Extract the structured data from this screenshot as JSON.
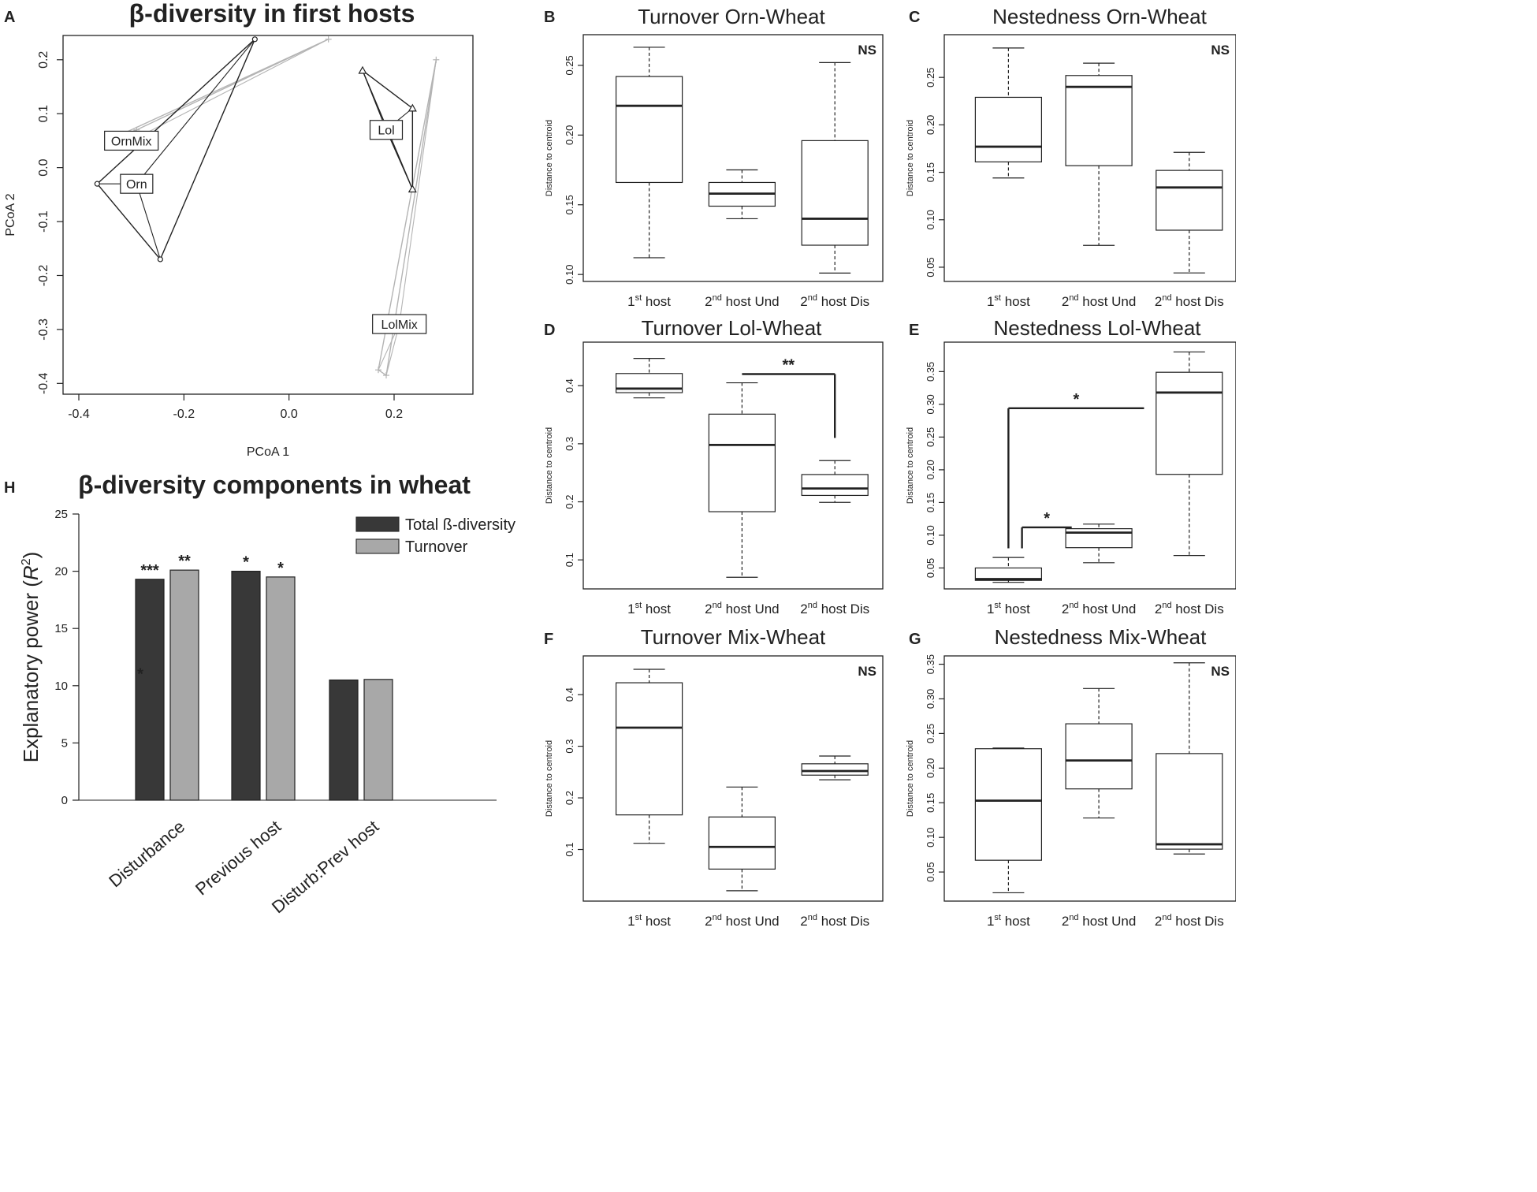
{
  "colors": {
    "ink": "#222222",
    "grid_grey": "#b4b4b4",
    "dark_bar": "#383838",
    "light_bar": "#a8a8a8"
  },
  "chart_data": [
    {
      "id": "A",
      "type": "scatter",
      "panel_letter": "A",
      "title": "β-diversity  in first hosts",
      "xlabel": "PCoA 1",
      "ylabel": "PCoA 2",
      "xlim": [
        -0.43,
        0.35
      ],
      "ylim": [
        -0.42,
        0.245
      ],
      "xticks": [
        -0.4,
        -0.2,
        0.0,
        0.2
      ],
      "xtick_labels": [
        "-0.4",
        "-0.2",
        "0.0",
        "0.2"
      ],
      "yticks": [
        0.2,
        0.1,
        0.0,
        -0.1,
        -0.2,
        -0.3,
        -0.4
      ],
      "ytick_labels": [
        "0.2",
        "0.1",
        "0.0",
        "-0.1",
        "-0.2",
        "-0.3",
        "-0.4"
      ],
      "groups": [
        {
          "name": "Orn",
          "marker": "circle",
          "color": "#222222",
          "centroid": [
            -0.29,
            -0.03
          ],
          "points": [
            [
              -0.065,
              0.238
            ],
            [
              -0.365,
              -0.03
            ],
            [
              -0.245,
              -0.17
            ]
          ],
          "hull": [
            [
              -0.065,
              0.238
            ],
            [
              -0.365,
              -0.03
            ],
            [
              -0.245,
              -0.17
            ]
          ]
        },
        {
          "name": "OrnMix",
          "marker": "cross",
          "color": "#b4b4b4",
          "centroid": [
            -0.3,
            0.05
          ],
          "points": [
            [
              0.075,
              0.238
            ],
            [
              -0.345,
              0.05
            ],
            [
              -0.29,
              0.07
            ]
          ],
          "hull": [
            [
              0.075,
              0.238
            ],
            [
              -0.345,
              0.05
            ],
            [
              -0.29,
              0.07
            ]
          ]
        },
        {
          "name": "Lol",
          "marker": "triangle",
          "color": "#222222",
          "centroid": [
            0.185,
            0.07
          ],
          "points": [
            [
              0.14,
              0.18
            ],
            [
              0.235,
              0.11
            ],
            [
              0.235,
              -0.04
            ]
          ],
          "hull": [
            [
              0.14,
              0.18
            ],
            [
              0.235,
              0.11
            ],
            [
              0.235,
              -0.04
            ]
          ]
        },
        {
          "name": "LolMix",
          "marker": "cross",
          "color": "#b4b4b4",
          "centroid": [
            0.21,
            -0.29
          ],
          "points": [
            [
              0.28,
              0.2
            ],
            [
              0.17,
              -0.375
            ],
            [
              0.185,
              -0.385
            ]
          ],
          "hull": [
            [
              0.28,
              0.2
            ],
            [
              0.17,
              -0.375
            ],
            [
              0.185,
              -0.385
            ]
          ]
        }
      ]
    },
    {
      "id": "B",
      "type": "box",
      "panel_letter": "B",
      "title": "Turnover Orn-Wheat",
      "ylabel": "Distance to centroid",
      "ylim": [
        0.095,
        0.272
      ],
      "yticks": [
        0.1,
        0.15,
        0.2,
        0.25
      ],
      "ytick_labels": [
        "0.10",
        "0.15",
        "0.20",
        "0.25"
      ],
      "note": "NS",
      "groups": [
        {
          "base": "1",
          "sup": "st",
          "rest": " host",
          "min": 0.112,
          "q1": 0.166,
          "median": 0.221,
          "q3": 0.242,
          "max": 0.263
        },
        {
          "base": "2",
          "sup": "nd",
          "rest": " host Und",
          "min": 0.14,
          "q1": 0.149,
          "median": 0.158,
          "q3": 0.166,
          "max": 0.175
        },
        {
          "base": "2",
          "sup": "nd",
          "rest": " host Dis",
          "min": 0.101,
          "q1": 0.121,
          "median": 0.14,
          "q3": 0.196,
          "max": 0.252
        }
      ],
      "brackets": []
    },
    {
      "id": "C",
      "type": "box",
      "panel_letter": "C",
      "title": "Nestedness Orn-Wheat",
      "ylabel": "Distance to centroid",
      "ylim": [
        0.035,
        0.295
      ],
      "yticks": [
        0.05,
        0.1,
        0.15,
        0.2,
        0.25
      ],
      "ytick_labels": [
        "0.05",
        "0.10",
        "0.15",
        "0.20",
        "0.25"
      ],
      "note": "NS",
      "groups": [
        {
          "base": "1",
          "sup": "st",
          "rest": " host",
          "min": 0.144,
          "q1": 0.161,
          "median": 0.177,
          "q3": 0.229,
          "max": 0.281
        },
        {
          "base": "2",
          "sup": "nd",
          "rest": " host Und",
          "min": 0.073,
          "q1": 0.157,
          "median": 0.24,
          "q3": 0.252,
          "max": 0.265
        },
        {
          "base": "2",
          "sup": "nd",
          "rest": " host Dis",
          "min": 0.044,
          "q1": 0.089,
          "median": 0.134,
          "q3": 0.152,
          "max": 0.171
        }
      ],
      "brackets": []
    },
    {
      "id": "D",
      "type": "box",
      "panel_letter": "D",
      "title": "Turnover Lol-Wheat",
      "ylabel": "Distance to centroid",
      "ylim": [
        0.05,
        0.475
      ],
      "yticks": [
        0.1,
        0.2,
        0.3,
        0.4
      ],
      "ytick_labels": [
        "0.1",
        "0.2",
        "0.3",
        "0.4"
      ],
      "note": "",
      "groups": [
        {
          "base": "1",
          "sup": "st",
          "rest": " host",
          "min": 0.379,
          "q1": 0.388,
          "median": 0.395,
          "q3": 0.421,
          "max": 0.447
        },
        {
          "base": "2",
          "sup": "nd",
          "rest": " host Und",
          "min": 0.07,
          "q1": 0.183,
          "median": 0.298,
          "q3": 0.351,
          "max": 0.405
        },
        {
          "base": "2",
          "sup": "nd",
          "rest": " host Dis",
          "min": 0.199,
          "q1": 0.211,
          "median": 0.223,
          "q3": 0.247,
          "max": 0.271
        }
      ],
      "brackets": [
        {
          "from": 1,
          "to": 2,
          "y": 0.42,
          "tick_from": 0.42,
          "tick_to": 0.31,
          "label": "**"
        }
      ]
    },
    {
      "id": "E",
      "type": "box",
      "panel_letter": "E",
      "title": "Nestedness Lol-Wheat",
      "ylabel": "Distance to centroid",
      "ylim": [
        0.018,
        0.395
      ],
      "yticks": [
        0.05,
        0.1,
        0.15,
        0.2,
        0.25,
        0.3,
        0.35
      ],
      "ytick_labels": [
        "0.05",
        "0.10",
        "0.15",
        "0.20",
        "0.25",
        "0.30",
        "0.35"
      ],
      "note": "",
      "groups": [
        {
          "base": "1",
          "sup": "st",
          "rest": " host",
          "min": 0.028,
          "q1": 0.031,
          "median": 0.033,
          "q3": 0.05,
          "max": 0.066
        },
        {
          "base": "2",
          "sup": "nd",
          "rest": " host Und",
          "min": 0.058,
          "q1": 0.081,
          "median": 0.104,
          "q3": 0.11,
          "max": 0.117
        },
        {
          "base": "2",
          "sup": "nd",
          "rest": " host Dis",
          "min": 0.069,
          "q1": 0.193,
          "median": 0.318,
          "q3": 0.349,
          "max": 0.38
        }
      ],
      "brackets": [
        {
          "from": 0,
          "to": 1.5,
          "y": 0.294,
          "tick_from": 0.08,
          "tick_to": 0.294,
          "label": "*"
        },
        {
          "from": 0.15,
          "to": 0.7,
          "y": 0.112,
          "tick_from": 0.08,
          "tick_to": 0.112,
          "label": "*"
        }
      ]
    },
    {
      "id": "F",
      "type": "box",
      "panel_letter": "F",
      "title": "Turnover Mix-Wheat",
      "ylabel": "Distance to centroid",
      "ylim": [
        0.0,
        0.475
      ],
      "yticks": [
        0.1,
        0.2,
        0.3,
        0.4
      ],
      "ytick_labels": [
        "0.1",
        "0.2",
        "0.3",
        "0.4"
      ],
      "note": "NS",
      "groups": [
        {
          "base": "1",
          "sup": "st",
          "rest": " host",
          "min": 0.112,
          "q1": 0.167,
          "median": 0.336,
          "q3": 0.423,
          "max": 0.449
        },
        {
          "base": "2",
          "sup": "nd",
          "rest": " host Und",
          "min": 0.02,
          "q1": 0.062,
          "median": 0.105,
          "q3": 0.163,
          "max": 0.221
        },
        {
          "base": "2",
          "sup": "nd",
          "rest": " host Dis",
          "min": 0.235,
          "q1": 0.244,
          "median": 0.252,
          "q3": 0.266,
          "max": 0.281
        }
      ],
      "brackets": []
    },
    {
      "id": "G",
      "type": "box",
      "panel_letter": "G",
      "title": "Nestedness Mix-Wheat",
      "ylabel": "Distance to centroid",
      "ylim": [
        0.008,
        0.362
      ],
      "yticks": [
        0.05,
        0.1,
        0.15,
        0.2,
        0.25,
        0.3,
        0.35
      ],
      "ytick_labels": [
        "0.05",
        "0.10",
        "0.15",
        "0.20",
        "0.25",
        "0.30",
        "0.35"
      ],
      "note": "NS",
      "groups": [
        {
          "base": "1",
          "sup": "st",
          "rest": " host",
          "min": 0.02,
          "q1": 0.067,
          "median": 0.153,
          "q3": 0.228,
          "max": 0.229
        },
        {
          "base": "2",
          "sup": "nd",
          "rest": " host Und",
          "min": 0.128,
          "q1": 0.17,
          "median": 0.211,
          "q3": 0.264,
          "max": 0.315
        },
        {
          "base": "2",
          "sup": "nd",
          "rest": " host Dis",
          "min": 0.076,
          "q1": 0.083,
          "median": 0.09,
          "q3": 0.221,
          "max": 0.352
        }
      ],
      "brackets": []
    },
    {
      "id": "H",
      "type": "bar",
      "panel_letter": "H",
      "title": "β-diversity  components in wheat",
      "ylabel": "Explanatory power (",
      "ylabel_italic": "R",
      "ylabel_sup": "2",
      "ylabel_close": ")",
      "ylim": [
        0,
        25
      ],
      "yticks": [
        0,
        5,
        10,
        15,
        20,
        25
      ],
      "ytick_labels": [
        "0",
        "5",
        "10",
        "15",
        "20",
        "25"
      ],
      "categories": [
        "Disturbance",
        "Previous host",
        "Disturb:Prev host"
      ],
      "series": [
        {
          "name": "Total ß-diversity",
          "color": "#383838",
          "values": [
            19.3,
            20.0,
            10.5
          ],
          "sig": [
            "***",
            "*",
            ""
          ]
        },
        {
          "name": "Turnover",
          "color": "#a8a8a8",
          "values": [
            20.1,
            19.5,
            10.55
          ],
          "sig": [
            "**",
            "*",
            ""
          ]
        }
      ],
      "extra_marks": [
        {
          "label": "*",
          "category": 0,
          "series": 0,
          "value": 11.0
        }
      ]
    }
  ]
}
